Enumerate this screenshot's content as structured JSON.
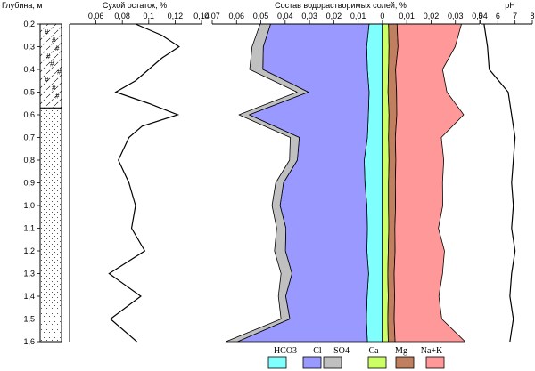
{
  "chart_data": [
    {
      "type": "area",
      "kind": "lithology-column",
      "ylabel": "Глубина, м",
      "ylim": [
        0.2,
        1.6
      ],
      "yticks": [
        "0,2",
        "0,3",
        "0,4",
        "0,5",
        "0,6",
        "0,7",
        "0,8",
        "0,9",
        "1,0",
        "1,1",
        "1,2",
        "1,3",
        "1,4",
        "1,5",
        "1,6"
      ],
      "layers": [
        {
          "from": 0.2,
          "to": 0.57,
          "pattern": "hashed-loam-with-hash-symbols"
        },
        {
          "from": 0.57,
          "to": 1.6,
          "pattern": "dotted-sand"
        }
      ]
    },
    {
      "type": "line",
      "title": "Сухой остаток, %",
      "xlim": [
        0.04,
        0.14
      ],
      "xticks": [
        "0,06",
        "0,08",
        "0,1",
        "0,12",
        "0,14"
      ],
      "depth": [
        0.2,
        0.25,
        0.3,
        0.35,
        0.4,
        0.45,
        0.5,
        0.55,
        0.6,
        0.65,
        0.7,
        0.8,
        0.9,
        1.0,
        1.1,
        1.2,
        1.3,
        1.4,
        1.5,
        1.6
      ],
      "values": [
        0.09,
        0.11,
        0.123,
        0.11,
        0.1,
        0.09,
        0.075,
        0.1,
        0.122,
        0.095,
        0.085,
        0.077,
        0.085,
        0.09,
        0.087,
        0.097,
        0.07,
        0.094,
        0.071,
        0.091
      ]
    },
    {
      "type": "area",
      "title": "Состав водорастворимых солей, %",
      "xlim": [
        -0.07,
        0.04
      ],
      "xticks": [
        "0,07",
        "0,06",
        "0,05",
        "0,04",
        "0,03",
        "0,02",
        "0,01",
        "0",
        "0,01",
        "0,02",
        "0,03",
        "0,04"
      ],
      "depth": [
        0.2,
        0.3,
        0.4,
        0.5,
        0.6,
        0.7,
        0.8,
        0.9,
        1.0,
        1.1,
        1.2,
        1.3,
        1.4,
        1.5,
        1.6
      ],
      "anions_left": {
        "HCO3": [
          0.0055,
          0.0065,
          0.0062,
          0.0055,
          0.0058,
          0.0062,
          0.0075,
          0.0072,
          0.0064,
          0.0062,
          0.0064,
          0.0057,
          0.0063,
          0.0066,
          0.0062
        ],
        "Cl": [
          0.0405,
          0.0425,
          0.043,
          0.025,
          0.049,
          0.028,
          0.0275,
          0.0335,
          0.0357,
          0.0335,
          0.0335,
          0.0315,
          0.0335,
          0.0315,
          0.0534
        ],
        "SO4": [
          0.0043,
          0.0046,
          0.0054,
          0.0046,
          0.0042,
          0.0037,
          0.0032,
          0.0032,
          0.0033,
          0.0038,
          0.0045,
          0.0045,
          0.003,
          0.0036,
          0.0048
        ]
      },
      "cations_right": {
        "Ca": [
          0.0025,
          0.0027,
          0.0025,
          0.0023,
          0.0027,
          0.0025,
          0.0027,
          0.0025,
          0.0025,
          0.0026,
          0.0024,
          0.0022,
          0.0024,
          0.0022,
          0.0024
        ],
        "Mg": [
          0.0035,
          0.0037,
          0.0029,
          0.0035,
          0.0032,
          0.0028,
          0.0028,
          0.0028,
          0.0029,
          0.0025,
          0.0028,
          0.0026,
          0.0026,
          0.0026,
          0.0028
        ],
        "Na+K": [
          0.0265,
          0.0235,
          0.0193,
          0.0207,
          0.0275,
          0.0189,
          0.0197,
          0.0194,
          0.0194,
          0.0179,
          0.0203,
          0.0199,
          0.0182,
          0.0196,
          0.0288
        ]
      },
      "legend": [
        {
          "name": "HCO3",
          "color": "#80ffff"
        },
        {
          "name": "Cl",
          "color": "#9999ff"
        },
        {
          "name": "SO4",
          "color": "#c0c0c0"
        },
        {
          "name": "Ca",
          "color": "#ccff66"
        },
        {
          "name": "Mg",
          "color": "#c08060"
        },
        {
          "name": "Na+K",
          "color": "#ff9999"
        }
      ]
    },
    {
      "type": "line",
      "title": "pH",
      "xlim": [
        5,
        8
      ],
      "xticks": [
        "5",
        "6",
        "7",
        "8"
      ],
      "depth": [
        0.2,
        0.3,
        0.4,
        0.5,
        0.6,
        0.7,
        0.8,
        0.9,
        1.0,
        1.1,
        1.2,
        1.3,
        1.4,
        1.5,
        1.6
      ],
      "values": [
        5.2,
        5.4,
        5.5,
        6.6,
        6.8,
        7.0,
        6.9,
        6.8,
        6.9,
        6.8,
        7.0,
        6.8,
        6.7,
        6.9,
        6.7
      ]
    }
  ]
}
